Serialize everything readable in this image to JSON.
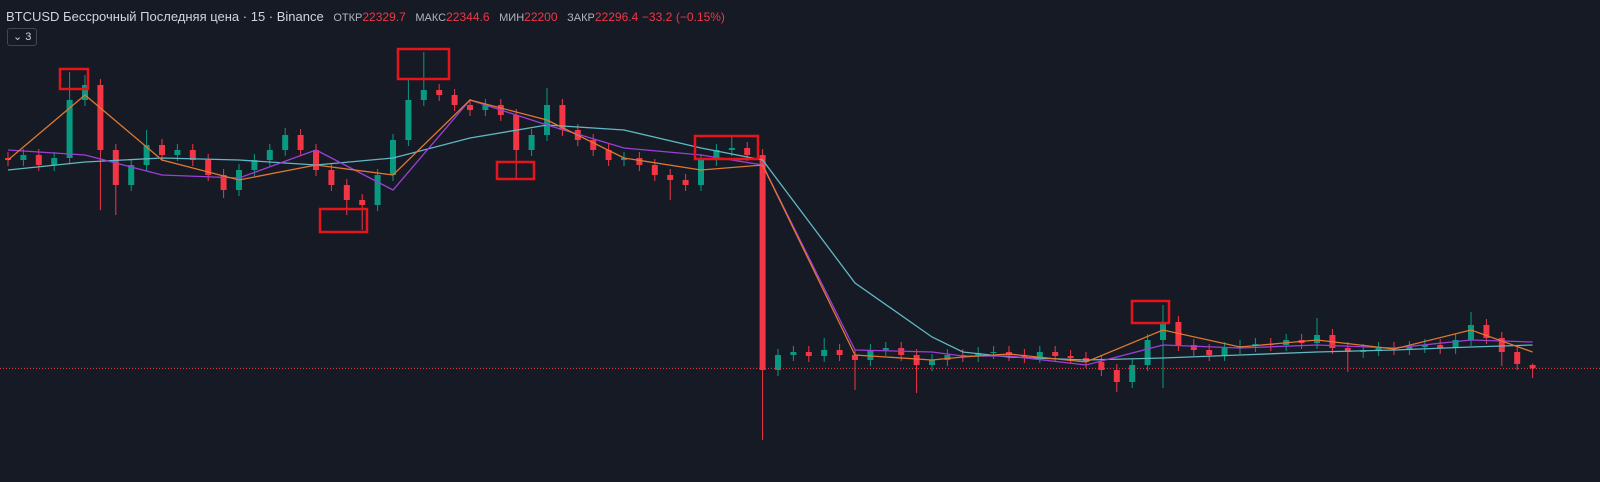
{
  "header": {
    "symbol": "BTCUSD Бессрочный Последняя цена · 15 · Binance",
    "ohlc_labels": [
      "ОТКР",
      "МАКС",
      "МИН",
      "ЗАКР"
    ],
    "change": {
      "value": -33.2,
      "label": "−33.2"
    },
    "change_percent": {
      "value": -0.15,
      "label": "(−0.15%)"
    },
    "indicators_count": 3
  },
  "chart_data": {
    "type": "candlestick",
    "up_color": "#089981",
    "down_color": "#f23645",
    "ylim": [
      21160,
      25980
    ],
    "open": [
      24400,
      24380,
      24430,
      24330,
      24400,
      24980,
      25130,
      24480,
      24130,
      24330,
      24530,
      24430,
      24480,
      24380,
      24230,
      24080,
      24280,
      24380,
      24480,
      24630,
      24480,
      24280,
      24130,
      23980,
      23930,
      24230,
      24580,
      24980,
      25080,
      25030,
      24930,
      24880,
      24930,
      24830,
      24480,
      24630,
      24930,
      24680,
      24580,
      24480,
      24380,
      24400,
      24330,
      24230,
      24180,
      24130,
      24380,
      24480,
      24500,
      24430,
      22280,
      22430,
      22460,
      22420,
      22480,
      22430,
      22380,
      22480,
      22500,
      22430,
      22330,
      22380,
      22430,
      22420,
      22450,
      22460,
      22430,
      22410,
      22460,
      22420,
      22400,
      22360,
      22280,
      22160,
      22330,
      22580,
      22760,
      22530,
      22480,
      22430,
      22500,
      22520,
      22540,
      22530,
      22580,
      22550,
      22630,
      22500,
      22460,
      22480,
      22500,
      22490,
      22510,
      22530,
      22500,
      22580,
      22730,
      22600,
      22460,
      22329.7
    ],
    "high": [
      24460,
      24490,
      24490,
      24460,
      25260,
      25230,
      25190,
      24540,
      24390,
      24680,
      24590,
      24540,
      24540,
      24440,
      24290,
      24340,
      24440,
      24540,
      24700,
      24690,
      24540,
      24340,
      24190,
      24040,
      24290,
      24640,
      25180,
      25460,
      25140,
      25090,
      24990,
      24990,
      24990,
      24890,
      24690,
      25100,
      24990,
      24740,
      24640,
      24540,
      24460,
      24460,
      24390,
      24290,
      24240,
      24440,
      24540,
      24630,
      24560,
      24490,
      22490,
      22520,
      22520,
      22600,
      22540,
      22490,
      22540,
      22560,
      22560,
      22490,
      22440,
      22490,
      22490,
      22510,
      22520,
      22520,
      22490,
      22520,
      22520,
      22480,
      22460,
      22420,
      22340,
      22390,
      22640,
      22930,
      22820,
      22590,
      22540,
      22560,
      22580,
      22600,
      22600,
      22640,
      22640,
      22800,
      22690,
      22560,
      22540,
      22560,
      22560,
      22570,
      22590,
      22590,
      22640,
      22860,
      22790,
      22660,
      22520,
      22344.6
    ],
    "low": [
      24320,
      24320,
      24270,
      24270,
      24340,
      24920,
      23880,
      23830,
      24070,
      24270,
      24370,
      24370,
      24320,
      24170,
      24000,
      24020,
      24220,
      24320,
      24420,
      24420,
      24220,
      24070,
      23830,
      23680,
      23870,
      24170,
      24520,
      24920,
      24970,
      24870,
      24820,
      24820,
      24770,
      24200,
      24420,
      24570,
      24620,
      24520,
      24420,
      24320,
      24320,
      24270,
      24170,
      23980,
      24070,
      24070,
      24320,
      24420,
      24370,
      21580,
      22220,
      22370,
      22360,
      22360,
      22370,
      22080,
      22320,
      22420,
      22370,
      22050,
      22270,
      22320,
      22360,
      22360,
      22390,
      22370,
      22350,
      22350,
      22360,
      22340,
      22300,
      22220,
      22060,
      22100,
      22270,
      22100,
      22470,
      22420,
      22370,
      22370,
      22440,
      22460,
      22470,
      22470,
      22490,
      22490,
      22440,
      22260,
      22400,
      22420,
      22430,
      22430,
      22450,
      22440,
      22440,
      22520,
      22540,
      22320,
      22280,
      22200
    ],
    "close": [
      24380,
      24430,
      24330,
      24400,
      24980,
      25130,
      24480,
      24130,
      24330,
      24530,
      24430,
      24480,
      24380,
      24230,
      24080,
      24280,
      24380,
      24480,
      24630,
      24480,
      24280,
      24130,
      23980,
      23930,
      24230,
      24580,
      24980,
      25080,
      25030,
      24930,
      24880,
      24930,
      24830,
      24480,
      24630,
      24930,
      24680,
      24580,
      24480,
      24380,
      24400,
      24330,
      24230,
      24180,
      24130,
      24380,
      24480,
      24500,
      24430,
      22280,
      22430,
      22460,
      22420,
      22480,
      22430,
      22380,
      22480,
      22500,
      22430,
      22330,
      22380,
      22430,
      22420,
      22450,
      22460,
      22430,
      22410,
      22460,
      22420,
      22400,
      22360,
      22280,
      22160,
      22330,
      22580,
      22760,
      22530,
      22480,
      22430,
      22500,
      22520,
      22540,
      22530,
      22580,
      22550,
      22630,
      22500,
      22460,
      22480,
      22500,
      22490,
      22510,
      22530,
      22500,
      22580,
      22730,
      22600,
      22460,
      22340,
      22296.4
    ],
    "overlays": [
      {
        "color": "#5fb8c4",
        "x": [
          0,
          5,
          10,
          15,
          20,
          25,
          30,
          35,
          40,
          45,
          49,
          55,
          60,
          62,
          65,
          70,
          75,
          80,
          85,
          90,
          95,
          99
        ],
        "values": [
          24280,
          24360,
          24400,
          24380,
          24330,
          24400,
          24600,
          24730,
          24680,
          24500,
          24380,
          23150,
          22610,
          22460,
          22410,
          22380,
          22400,
          22430,
          22460,
          22480,
          22510,
          22530
        ]
      },
      {
        "color": "#9c3fd6",
        "x": [
          0,
          5,
          10,
          15,
          20,
          25,
          30,
          35,
          40,
          45,
          49,
          55,
          60,
          62,
          65,
          70,
          75,
          80,
          85,
          90,
          95,
          99
        ],
        "values": [
          24480,
          24430,
          24230,
          24200,
          24480,
          24080,
          24980,
          24730,
          24500,
          24430,
          24330,
          22480,
          22460,
          22420,
          22420,
          22330,
          22530,
          22500,
          22530,
          22500,
          22580,
          22560
        ]
      },
      {
        "color": "#e0782f",
        "x": [
          0,
          5,
          10,
          15,
          20,
          25,
          30,
          35,
          40,
          45,
          49,
          55,
          60,
          62,
          65,
          70,
          75,
          80,
          85,
          90,
          95,
          99
        ],
        "values": [
          24380,
          25030,
          24380,
          24180,
          24330,
          24230,
          24980,
          24780,
          24400,
          24280,
          24330,
          22430,
          22380,
          22410,
          22440,
          22360,
          22680,
          22510,
          22580,
          22490,
          22680,
          22460
        ]
      }
    ],
    "last_price_line_color": "#f23645"
  }
}
